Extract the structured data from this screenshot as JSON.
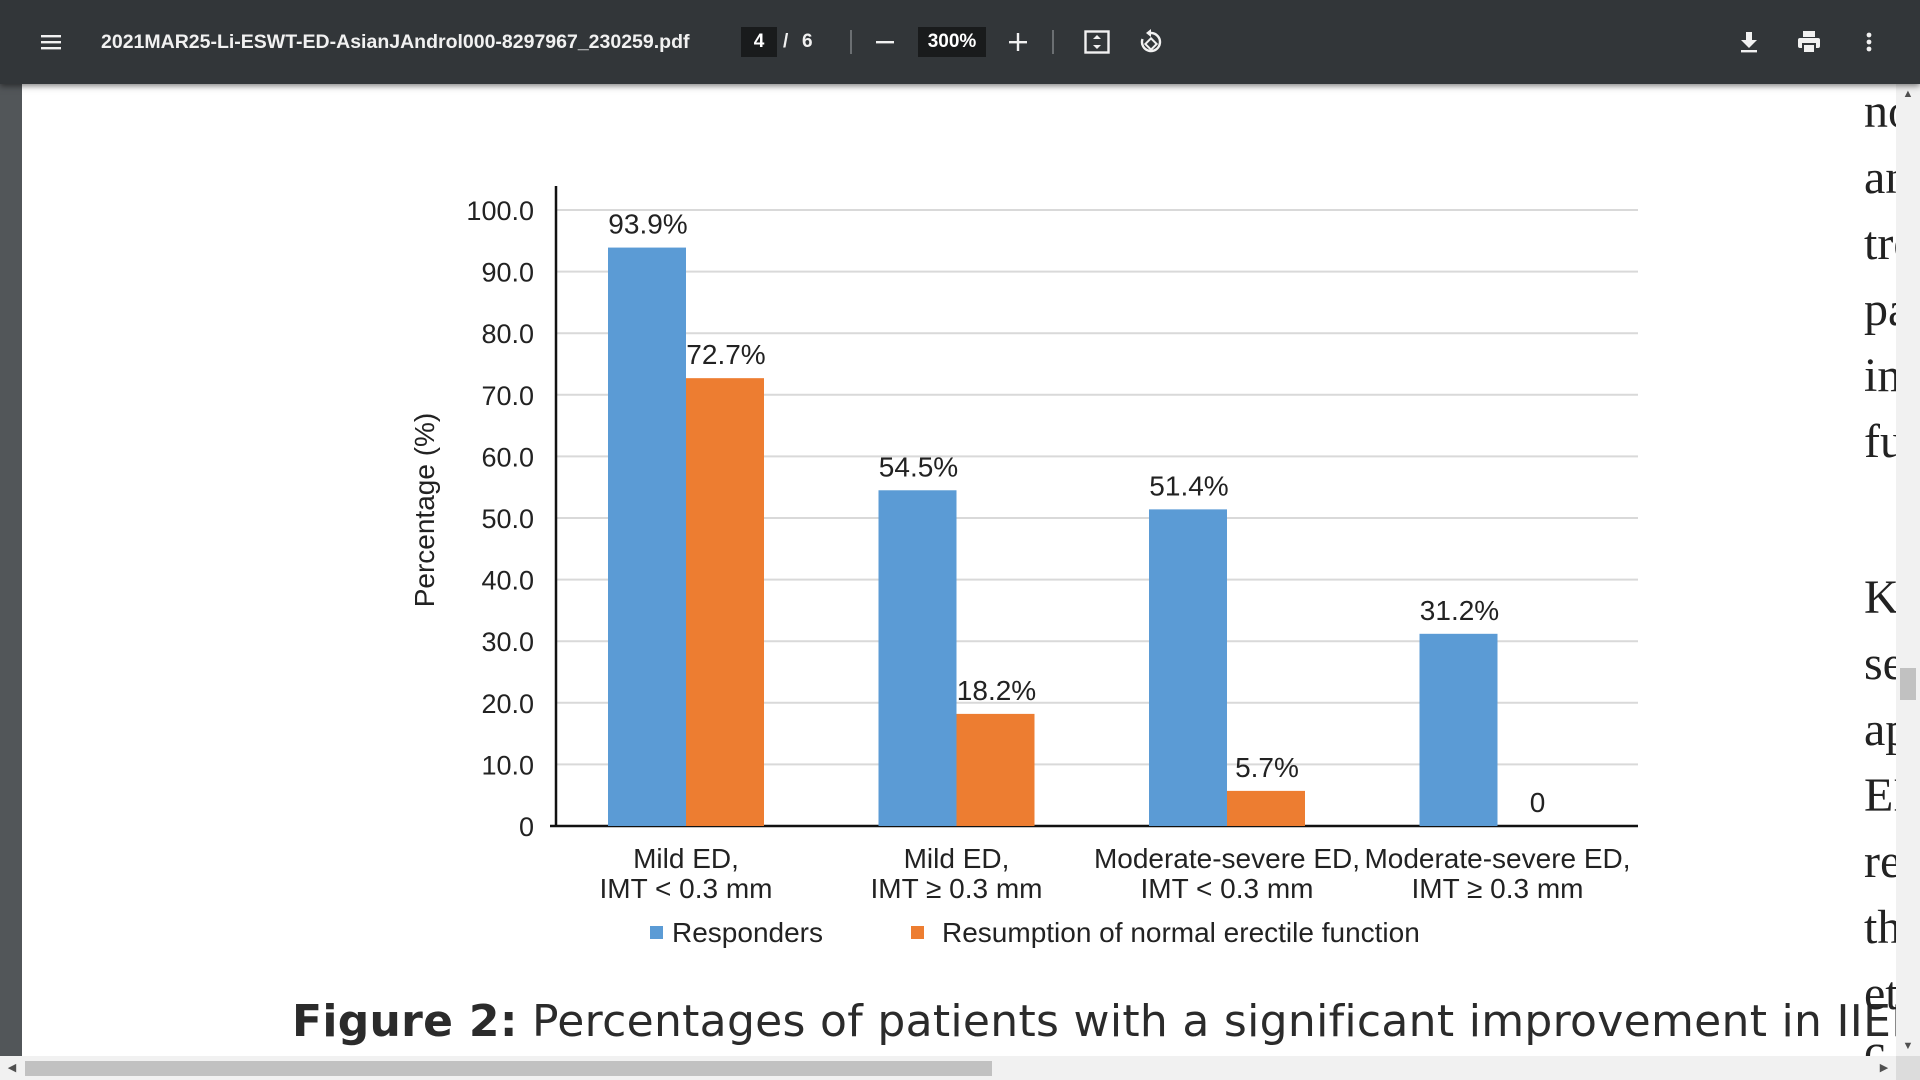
{
  "toolbar": {
    "menu_icon": "menu-icon",
    "file_name": "2021MAR25-Li-ESWT-ED-AsianJAndrol000-8297967_230259.pdf",
    "current_page": "4",
    "page_separator": "/",
    "total_pages": "6",
    "zoom_out_icon": "minus-icon",
    "zoom_level": "300%",
    "zoom_in_icon": "plus-icon",
    "fit_icon": "fit-page-icon",
    "rotate_icon": "rotate-icon",
    "download_icon": "download-icon",
    "print_icon": "print-icon",
    "more_icon": "more-vert-icon"
  },
  "chart_data": {
    "type": "bar",
    "title": "",
    "xlabel": "",
    "ylabel": "Percentage (%)",
    "ylim": [
      0,
      100
    ],
    "yticks": [
      "0",
      "10.0",
      "20.0",
      "30.0",
      "40.0",
      "50.0",
      "60.0",
      "70.0",
      "80.0",
      "90.0",
      "100.0"
    ],
    "categories": [
      [
        "Mild ED,",
        "IMT < 0.3 mm"
      ],
      [
        "Mild ED,",
        "IMT ≥ 0.3 mm"
      ],
      [
        "Moderate-severe ED,",
        "IMT < 0.3 mm"
      ],
      [
        "Moderate-severe ED,",
        "IMT ≥ 0.3 mm"
      ]
    ],
    "series": [
      {
        "name": "Responders",
        "color": "#5b9bd5",
        "values": [
          93.9,
          54.5,
          51.4,
          31.2
        ],
        "labels": [
          "93.9%",
          "54.5%",
          "51.4%",
          "31.2%"
        ]
      },
      {
        "name": "Resumption of normal erectile function",
        "color": "#ed7d31",
        "values": [
          72.7,
          18.2,
          5.7,
          0
        ],
        "labels": [
          "72.7%",
          "18.2%",
          "5.7%",
          "0"
        ]
      }
    ],
    "legend_position": "bottom"
  },
  "caption": {
    "label": "Figure 2:",
    "text": " Percentages of patients with a significant improvement in IIEF and"
  },
  "side_text": [
    "no",
    "an",
    "tre",
    "pa",
    "im",
    "fu",
    "Ka",
    "se",
    "ap",
    "ED",
    "re",
    "th",
    "eti",
    "c"
  ]
}
